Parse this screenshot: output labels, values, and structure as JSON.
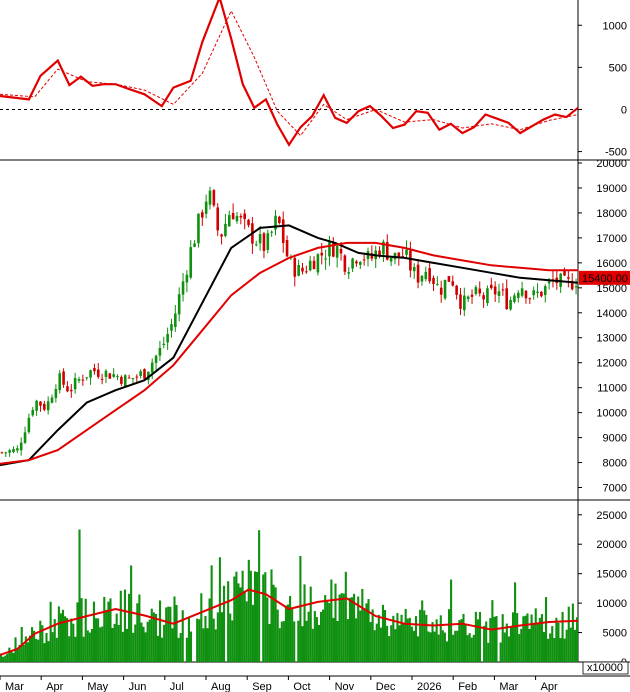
{
  "chart_data": [
    {
      "type": "line",
      "panel": "indicator",
      "ylim": [
        -600,
        1300
      ],
      "yticks": [
        "1000",
        "500",
        "0",
        "-500"
      ],
      "zero_line": "dashed",
      "series": [
        {
          "color": "#e00000",
          "style": "solid",
          "x": [
            0,
            0.05,
            0.07,
            0.1,
            0.12,
            0.14,
            0.16,
            0.18,
            0.2,
            0.22,
            0.25,
            0.28,
            0.3,
            0.33,
            0.35,
            0.38,
            0.4,
            0.42,
            0.44,
            0.46,
            0.48,
            0.5,
            0.52,
            0.54,
            0.56,
            0.58,
            0.6,
            0.62,
            0.64,
            0.66,
            0.68,
            0.7,
            0.72,
            0.74,
            0.76,
            0.78,
            0.8,
            0.82,
            0.84,
            0.86,
            0.88,
            0.9,
            0.92,
            0.94,
            0.96,
            0.98,
            1.0
          ],
          "y": [
            160,
            120,
            400,
            580,
            290,
            390,
            280,
            300,
            300,
            250,
            180,
            40,
            260,
            340,
            800,
            1330,
            840,
            300,
            20,
            120,
            -180,
            -420,
            -210,
            -80,
            170,
            -100,
            -160,
            -20,
            40,
            -80,
            -220,
            -180,
            -20,
            -40,
            -240,
            -170,
            -280,
            -210,
            -60,
            -110,
            -160,
            -280,
            -200,
            -120,
            -60,
            -90,
            20
          ]
        },
        {
          "color": "#e00000",
          "style": "dashed",
          "x": [
            0,
            0.06,
            0.1,
            0.15,
            0.2,
            0.25,
            0.3,
            0.35,
            0.4,
            0.44,
            0.48,
            0.52,
            0.56,
            0.6,
            0.65,
            0.7,
            0.75,
            0.8,
            0.85,
            0.9,
            0.95,
            1.0
          ],
          "y": [
            180,
            150,
            480,
            330,
            300,
            230,
            60,
            430,
            1170,
            620,
            -20,
            -310,
            60,
            -120,
            0,
            -150,
            -120,
            -220,
            -170,
            -240,
            -130,
            -60
          ]
        }
      ]
    },
    {
      "type": "candlestick",
      "panel": "price",
      "ylim": [
        6500,
        20000
      ],
      "yticks": [
        "20000",
        "19000",
        "18000",
        "17000",
        "16000",
        "15000",
        "14000",
        "13000",
        "12000",
        "11000",
        "10000",
        "9000",
        "8000",
        "7000"
      ],
      "last_price_label": "15400.00",
      "price_path": {
        "x": [
          0,
          0.03,
          0.06,
          0.08,
          0.1,
          0.12,
          0.14,
          0.16,
          0.18,
          0.2,
          0.22,
          0.25,
          0.28,
          0.3,
          0.33,
          0.36,
          0.38,
          0.4,
          0.42,
          0.44,
          0.46,
          0.48,
          0.5,
          0.52,
          0.54,
          0.56,
          0.58,
          0.6,
          0.62,
          0.64,
          0.66,
          0.68,
          0.7,
          0.72,
          0.74,
          0.76,
          0.78,
          0.8,
          0.82,
          0.84,
          0.86,
          0.88,
          0.9,
          0.92,
          0.94,
          0.96,
          0.98,
          1.0
        ],
        "y": [
          8400,
          8500,
          10500,
          10200,
          11400,
          10900,
          11400,
          11700,
          11600,
          11500,
          11300,
          11600,
          12600,
          13700,
          16500,
          18900,
          17000,
          18200,
          17500,
          17000,
          16600,
          17800,
          16000,
          15600,
          16100,
          16400,
          16700,
          15900,
          16400,
          16100,
          16700,
          16200,
          16300,
          15400,
          15800,
          14900,
          15500,
          14300,
          14700,
          14600,
          14900,
          14400,
          15200,
          14600,
          14900,
          15300,
          15100,
          15400
        ]
      },
      "series": [
        {
          "name_hidden": "MA_short",
          "color": "#000000",
          "x": [
            0,
            0.05,
            0.1,
            0.15,
            0.2,
            0.25,
            0.3,
            0.35,
            0.4,
            0.45,
            0.5,
            0.55,
            0.58,
            0.6,
            0.62,
            0.65,
            0.7,
            0.75,
            0.8,
            0.85,
            0.9,
            0.95,
            1.0
          ],
          "y": [
            7900,
            8100,
            9300,
            10400,
            10900,
            11300,
            12200,
            14400,
            16600,
            17400,
            17500,
            17000,
            16800,
            16600,
            16400,
            16300,
            16200,
            16000,
            15800,
            15600,
            15400,
            15300,
            15200
          ]
        },
        {
          "name_hidden": "MA_long",
          "color": "#e00000",
          "x": [
            0,
            0.05,
            0.1,
            0.15,
            0.2,
            0.25,
            0.3,
            0.35,
            0.4,
            0.45,
            0.5,
            0.55,
            0.6,
            0.65,
            0.7,
            0.75,
            0.8,
            0.85,
            0.9,
            0.95,
            1.0
          ],
          "y": [
            7950,
            8100,
            8500,
            9300,
            10100,
            10900,
            11900,
            13300,
            14700,
            15600,
            16200,
            16600,
            16800,
            16800,
            16600,
            16300,
            16100,
            15900,
            15800,
            15700,
            15700
          ]
        }
      ]
    },
    {
      "type": "bar",
      "panel": "volume",
      "ylim": [
        0,
        27000
      ],
      "yticks": [
        "25000",
        "20000",
        "15000",
        "10000",
        "5000",
        "0"
      ],
      "unit_label": "x10000",
      "bar_color": "#109010",
      "spikes": [
        {
          "x": 0.138,
          "v": 22500
        },
        {
          "x": 0.318,
          "v": 25000
        },
        {
          "x": 0.42,
          "v": 15500
        },
        {
          "x": 0.52,
          "v": 18000
        },
        {
          "x": 0.78,
          "v": 14000
        }
      ],
      "ma_line": {
        "color": "#e00000",
        "x": [
          0,
          0.03,
          0.06,
          0.1,
          0.15,
          0.2,
          0.25,
          0.3,
          0.35,
          0.4,
          0.43,
          0.46,
          0.5,
          0.55,
          0.6,
          0.65,
          0.7,
          0.75,
          0.8,
          0.85,
          0.9,
          0.95,
          1.0
        ],
        "y": [
          1200,
          2200,
          4800,
          6500,
          7800,
          9000,
          7900,
          6500,
          8500,
          10500,
          12300,
          11500,
          9000,
          10200,
          10800,
          7800,
          6500,
          6200,
          6500,
          5500,
          6200,
          6800,
          7000
        ]
      }
    }
  ],
  "x_axis": {
    "months": [
      "Mar",
      "Apr",
      "May",
      "Jun",
      "Jul",
      "Aug",
      "Sep",
      "Oct",
      "Nov",
      "Dec",
      "2026",
      "Feb",
      "Mar",
      "Apr"
    ]
  }
}
